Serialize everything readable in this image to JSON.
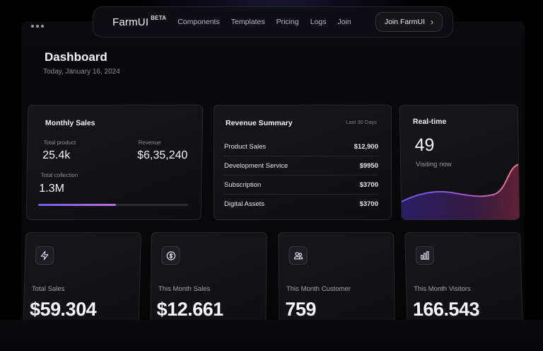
{
  "nav": {
    "brand": "FarmUI",
    "badge": "BETA",
    "links": [
      "Components",
      "Templates",
      "Pricing",
      "Logs",
      "Join"
    ],
    "cta": "Join FarmUI"
  },
  "header": {
    "title": "Dashboard",
    "date": "Today, January 16, 2024"
  },
  "monthly_sales": {
    "title": "Monthly Sales",
    "total_product_label": "Total product",
    "total_product_value": "25.4k",
    "total_revenue_label": "Total Revenue",
    "total_revenue_value": "$6,35,240",
    "total_collection_label": "Total collection",
    "total_collection_value": "1.3M",
    "progress_fraction": 0.52
  },
  "revenue_summary": {
    "title": "Revenue Summary",
    "period": "Last 30 Days",
    "rows": [
      {
        "label": "Product Sales",
        "amount": "$12,900"
      },
      {
        "label": "Development Service",
        "amount": "$9950"
      },
      {
        "label": "Subscription",
        "amount": "$3700"
      },
      {
        "label": "Digital Assets",
        "amount": "$3700"
      }
    ]
  },
  "realtime": {
    "title": "Real-time",
    "value": "49",
    "caption": "Visiting now"
  },
  "stats": [
    {
      "label": "Total Sales",
      "value": "$59.304",
      "icon": "lightning-icon"
    },
    {
      "label": "This Month Sales",
      "value": "$12.661",
      "icon": "dollar-icon"
    },
    {
      "label": "This Month Customer",
      "value": "759",
      "icon": "users-icon"
    },
    {
      "label": "This Month Visitors",
      "value": "166.543",
      "icon": "bar-chart-icon"
    }
  ],
  "colors": {
    "accent_start": "#6f5cf0",
    "accent_end": "#e0707a"
  }
}
